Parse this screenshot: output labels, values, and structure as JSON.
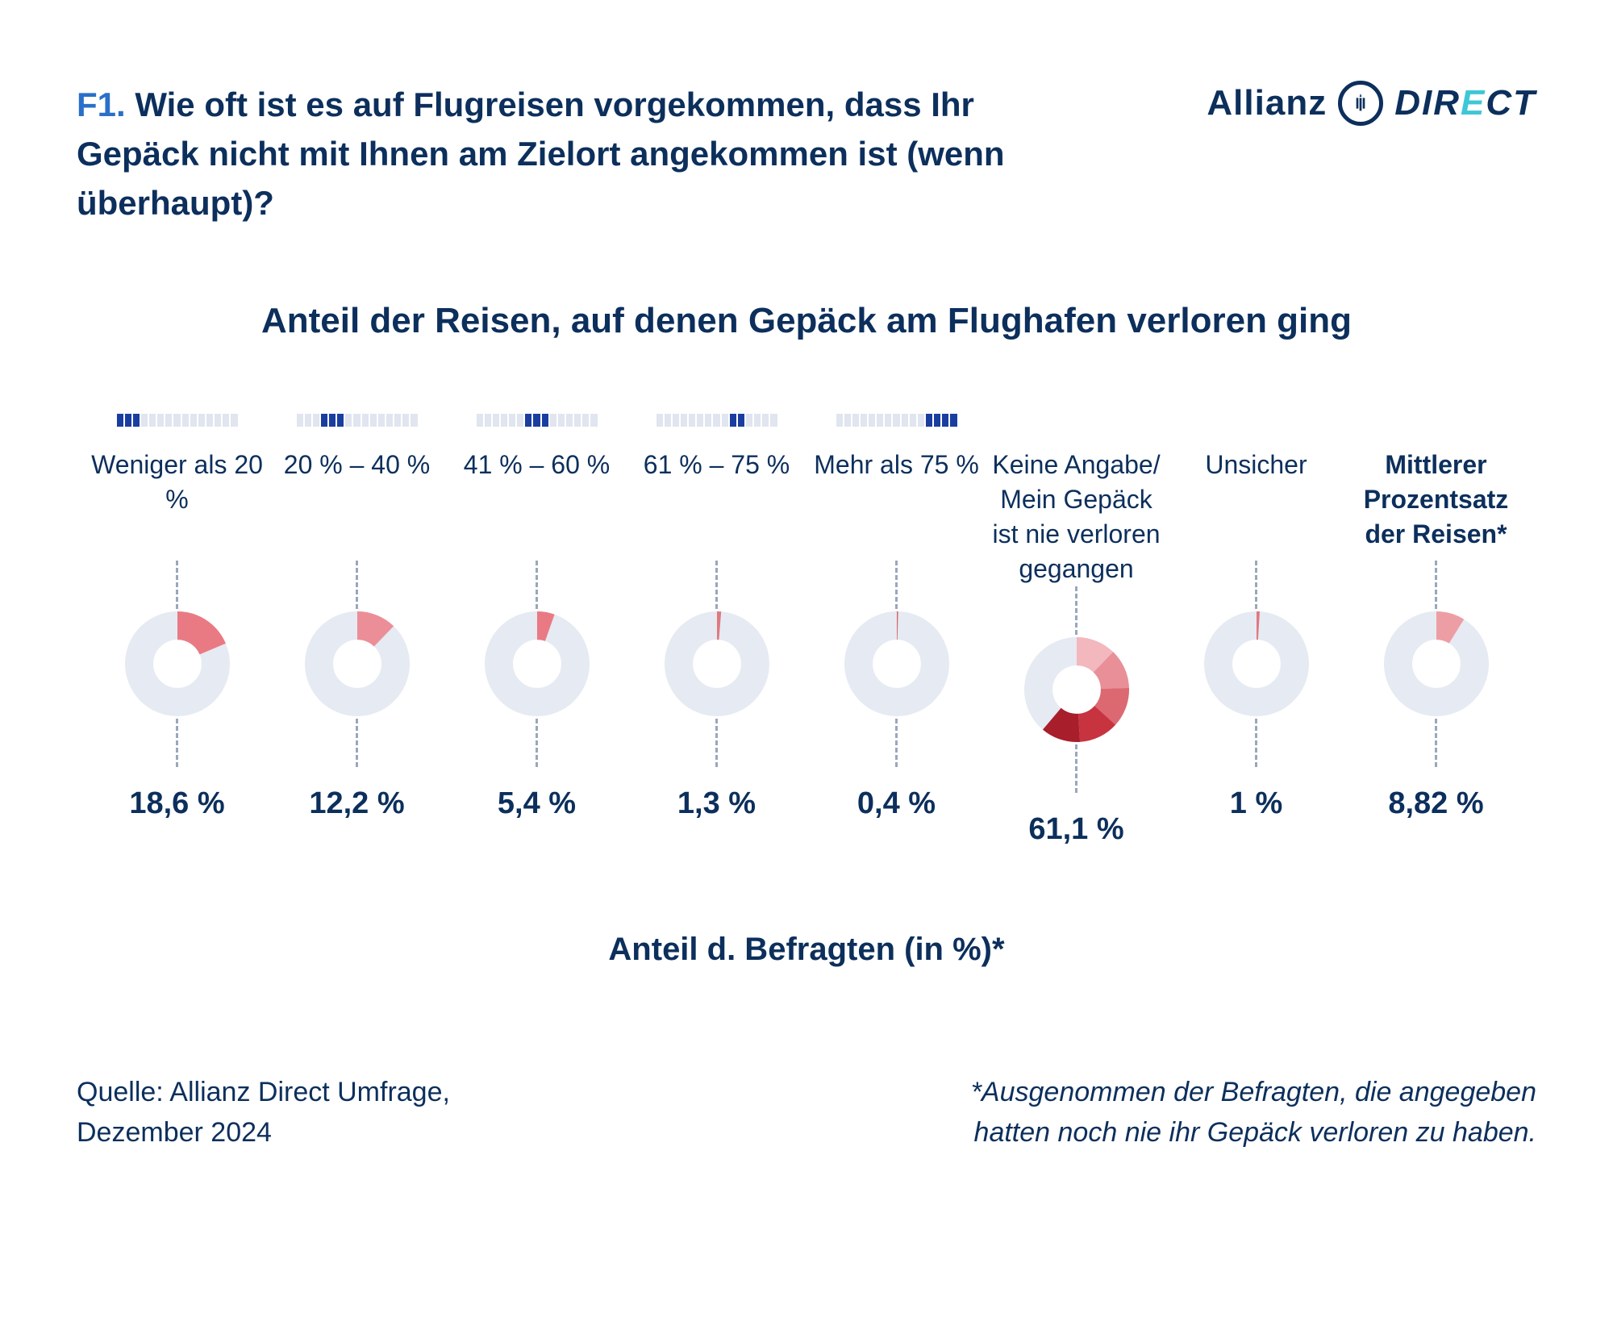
{
  "colors": {
    "text": "#0c2f5c",
    "accent": "#2a6fc9",
    "range_filled": "#1a3ea0",
    "range_empty": "#e0e5ef",
    "donut_track": "#e6eaf2",
    "tick": "#9aa7bc",
    "logo_cyan": "#3ec7d6"
  },
  "typography": {
    "question_fontsize": 42,
    "chart_title_fontsize": 44,
    "cat_label_fontsize": 32,
    "value_fontsize": 38,
    "subtitle_fontsize": 40,
    "footer_fontsize": 34
  },
  "header": {
    "qcode": "F1.",
    "question": "Wie oft ist es auf Flugreisen vorgekommen, dass Ihr Gepäck nicht mit Ihnen am Zielort angekommen ist (wenn überhaupt)?",
    "logo_allianz": "Allianz",
    "logo_direct_pre": "DIR",
    "logo_direct_eq": "E",
    "logo_direct_post": "CT"
  },
  "chart": {
    "title": "Anteil der Reisen, auf denen Gepäck am Flughafen verloren ging",
    "subtitle": "Anteil d. Befragten (in %)*",
    "donut_thickness_ratio": 0.27,
    "range_bar_segments": 15,
    "categories": [
      {
        "label": "Weniger als 20 %",
        "bold": false,
        "range_fill": [
          0,
          2
        ],
        "value": 18.6,
        "display": "18,6 %",
        "donut_segments": [
          {
            "start": 0,
            "span": 18.6,
            "color": "#e97a84"
          }
        ]
      },
      {
        "label": "20 % – 40 %",
        "bold": false,
        "range_fill": [
          3,
          5
        ],
        "value": 12.2,
        "display": "12,2 %",
        "donut_segments": [
          {
            "start": 0,
            "span": 12.2,
            "color": "#ec8e97"
          }
        ]
      },
      {
        "label": "41 % – 60 %",
        "bold": false,
        "range_fill": [
          6,
          8
        ],
        "value": 5.4,
        "display": "5,4 %",
        "donut_segments": [
          {
            "start": 0,
            "span": 5.4,
            "color": "#e97a84"
          }
        ]
      },
      {
        "label": "61 % – 75 %",
        "bold": false,
        "range_fill": [
          9,
          10
        ],
        "value": 1.3,
        "display": "1,3 %",
        "donut_segments": [
          {
            "start": 0,
            "span": 1.3,
            "color": "#e07880"
          }
        ]
      },
      {
        "label": "Mehr als 75 %",
        "bold": false,
        "range_fill": [
          11,
          14
        ],
        "value": 0.4,
        "display": "0,4 %",
        "donut_segments": [
          {
            "start": 0,
            "span": 0.4,
            "color": "#d5646d"
          }
        ]
      },
      {
        "label": "Keine Angabe/ Mein Gepäck ist nie verloren gegangen",
        "bold": false,
        "range_fill": null,
        "value": 61.1,
        "display": "61,1 %",
        "donut_segments": [
          {
            "start": 0,
            "span": 12.22,
            "color": "#f2b8bd"
          },
          {
            "start": 12.22,
            "span": 12.22,
            "color": "#e88f98"
          },
          {
            "start": 24.44,
            "span": 12.22,
            "color": "#dc6872"
          },
          {
            "start": 36.66,
            "span": 12.22,
            "color": "#c83340"
          },
          {
            "start": 48.88,
            "span": 12.22,
            "color": "#a81e2b"
          }
        ]
      },
      {
        "label": "Unsicher",
        "bold": false,
        "range_fill": null,
        "value": 1.0,
        "display": "1 %",
        "donut_segments": [
          {
            "start": 0,
            "span": 1.0,
            "color": "#e07880"
          }
        ]
      },
      {
        "label": "Mittlerer Prozentsatz der Reisen*",
        "bold": true,
        "range_fill": null,
        "value": 8.82,
        "display": "8,82 %",
        "donut_segments": [
          {
            "start": 0,
            "span": 8.82,
            "color": "#ed9ea5"
          }
        ]
      }
    ]
  },
  "footer": {
    "source_line1": "Quelle: Allianz Direct Umfrage,",
    "source_line2": "Dezember 2024",
    "footnote_line1": "*Ausgenommen der Befragten, die angegeben",
    "footnote_line2": "hatten noch nie ihr Gepäck verloren zu haben."
  }
}
